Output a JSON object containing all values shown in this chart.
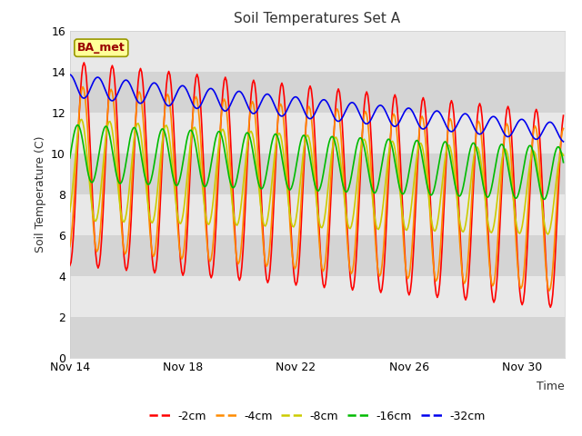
{
  "title": "Soil Temperatures Set A",
  "xlabel": "Time",
  "ylabel": "Soil Temperature (C)",
  "ylim": [
    0,
    16
  ],
  "yticks": [
    0,
    2,
    4,
    6,
    8,
    10,
    12,
    14,
    16
  ],
  "xtick_labels": [
    "Nov 14",
    "Nov 18",
    "Nov 22",
    "Nov 26",
    "Nov 30"
  ],
  "xtick_positions": [
    0,
    4,
    8,
    12,
    16
  ],
  "xlim_days": 17.5,
  "fig_facecolor": "#ffffff",
  "plot_facecolor": "#e8e8e8",
  "band_colors": [
    "#d4d4d4",
    "#e8e8e8"
  ],
  "series": [
    {
      "label": "-2cm",
      "color": "#ff0000",
      "mean_start": 9.5,
      "mean_end": 7.2,
      "amp_start": 5.0,
      "amp_end": 4.8,
      "phase": 0.0,
      "period": 1.0
    },
    {
      "label": "-4cm",
      "color": "#ff8c00",
      "mean_start": 9.3,
      "mean_end": 7.2,
      "amp_start": 4.0,
      "amp_end": 4.0,
      "phase": 0.25,
      "period": 1.0
    },
    {
      "label": "-8cm",
      "color": "#cccc00",
      "mean_start": 9.2,
      "mean_end": 8.0,
      "amp_start": 2.5,
      "amp_end": 2.0,
      "phase": 0.6,
      "period": 1.0
    },
    {
      "label": "-16cm",
      "color": "#00bb00",
      "mean_start": 10.0,
      "mean_end": 9.0,
      "amp_start": 1.4,
      "amp_end": 1.3,
      "phase": 1.4,
      "period": 1.0
    },
    {
      "label": "-32cm",
      "color": "#0000ee",
      "mean_start": 13.3,
      "mean_end": 11.0,
      "amp_start": 0.55,
      "amp_end": 0.45,
      "phase": 3.2,
      "period": 1.0
    }
  ],
  "line_width": 1.2,
  "annotation_text": "BA_met",
  "annotation_color": "#990000",
  "annotation_bg": "#ffff99",
  "annotation_edge": "#999900"
}
